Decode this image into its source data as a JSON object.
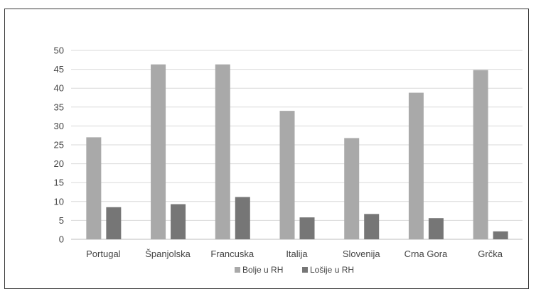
{
  "chart_data": {
    "type": "bar",
    "title": "",
    "xlabel": "",
    "ylabel": "",
    "categories": [
      "Portugal",
      "Španjolska",
      "Francuska",
      "Italija",
      "Slovenija",
      "Crna Gora",
      "Grčka"
    ],
    "series": [
      {
        "name": "Bolje u RH",
        "color": "#a9a9a9",
        "values": [
          27,
          46.3,
          46.3,
          34,
          26.8,
          38.8,
          44.8
        ]
      },
      {
        "name": "Lošije u RH",
        "color": "#767676",
        "values": [
          8.5,
          9.3,
          11.2,
          5.8,
          6.7,
          5.6,
          2.1
        ]
      }
    ],
    "ylim": [
      0,
      50
    ],
    "yticks": [
      0,
      5,
      10,
      15,
      20,
      25,
      30,
      35,
      40,
      45,
      50
    ],
    "grid": true,
    "legend_position": "bottom"
  }
}
